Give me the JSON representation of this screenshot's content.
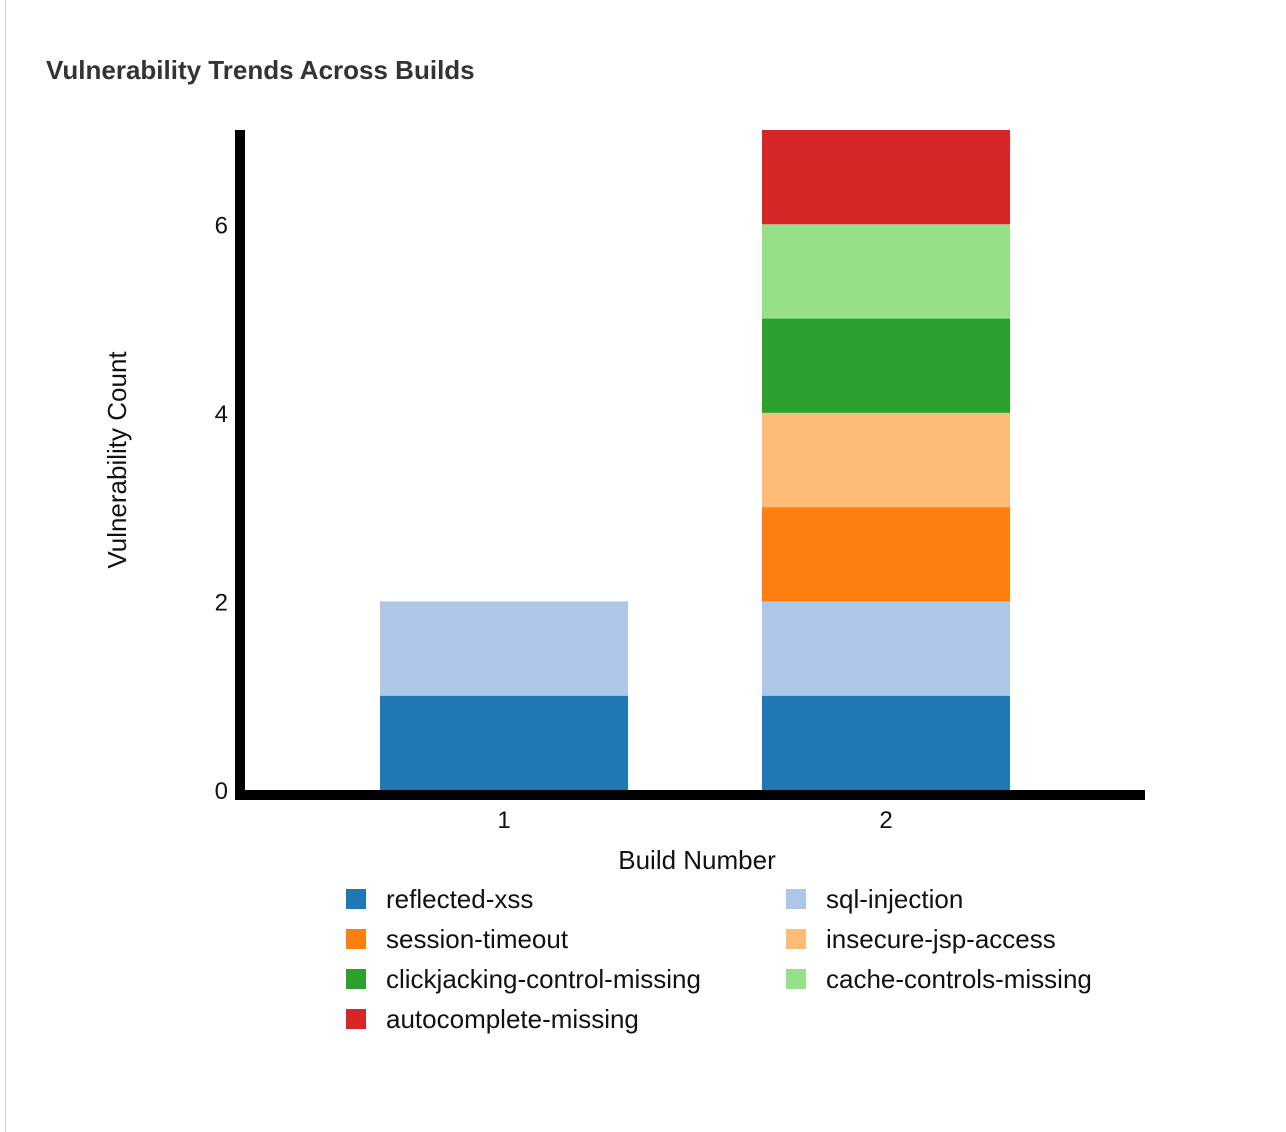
{
  "chart_data": {
    "type": "bar",
    "stacked": true,
    "title": "Vulnerability Trends Across Builds",
    "xlabel": "Build Number",
    "ylabel": "Vulnerability Count",
    "categories": [
      "1",
      "2"
    ],
    "ylim": [
      0,
      7
    ],
    "yticks": [
      0,
      2,
      4,
      6
    ],
    "grid": false,
    "legend_position": "bottom",
    "series": [
      {
        "name": "reflected-xss",
        "color": "#1f77b4",
        "values": [
          1,
          1
        ]
      },
      {
        "name": "sql-injection",
        "color": "#aec7e8",
        "values": [
          1,
          1
        ]
      },
      {
        "name": "session-timeout",
        "color": "#ff7f0e",
        "values": [
          0,
          1
        ]
      },
      {
        "name": "insecure-jsp-access",
        "color": "#ffbb78",
        "values": [
          0,
          1
        ]
      },
      {
        "name": "clickjacking-control-missing",
        "color": "#2ca02c",
        "values": [
          0,
          1
        ]
      },
      {
        "name": "cache-controls-missing",
        "color": "#98df8a",
        "values": [
          0,
          1
        ]
      },
      {
        "name": "autocomplete-missing",
        "color": "#d62728",
        "values": [
          0,
          1
        ]
      }
    ]
  }
}
